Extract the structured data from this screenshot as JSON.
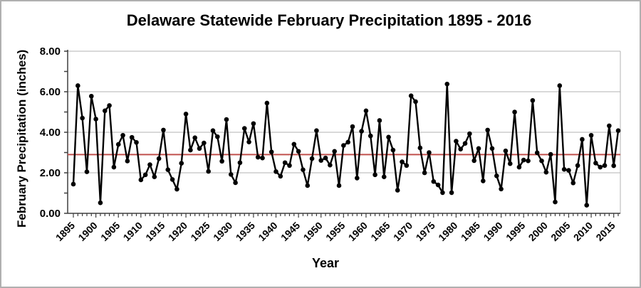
{
  "frame": {
    "title": "Delaware Statewide February Precipitation 1895 - 2016"
  },
  "chart_data": {
    "type": "line",
    "title": "Delaware Statewide February Precipitation 1895 - 2016",
    "xlabel": "Year",
    "ylabel": "February Precipitation (inches)",
    "ylim": [
      0,
      8
    ],
    "y_tick_labels": [
      "0.00",
      "2.00",
      "4.00",
      "6.00",
      "8.00"
    ],
    "y_tick_values": [
      0,
      2,
      4,
      6,
      8
    ],
    "y_minor_tick_step": 1,
    "x_start_year": 1895,
    "x_end_year": 2016,
    "x_tick_labels": [
      "1895",
      "1900",
      "1905",
      "1910",
      "1915",
      "1920",
      "1925",
      "1930",
      "1935",
      "1940",
      "1945",
      "1950",
      "1955",
      "1960",
      "1965",
      "1970",
      "1975",
      "1980",
      "1985",
      "1990",
      "1995",
      "2000",
      "2005",
      "2010",
      "2015"
    ],
    "grid": "horizontal",
    "legend": "none",
    "mean_line": {
      "value": 2.9,
      "color": "#c0504d"
    },
    "series": [
      {
        "name": "February precipitation (inches)",
        "color": "#000000",
        "values": [
          1.44,
          6.3,
          4.7,
          2.05,
          5.78,
          4.65,
          0.52,
          5.06,
          5.32,
          2.28,
          3.4,
          3.85,
          2.58,
          3.75,
          3.5,
          1.65,
          1.9,
          2.4,
          1.8,
          2.7,
          4.11,
          2.15,
          1.67,
          1.19,
          2.47,
          4.9,
          3.12,
          3.73,
          3.2,
          3.47,
          2.07,
          4.08,
          3.78,
          2.57,
          4.63,
          1.92,
          1.51,
          2.5,
          4.19,
          3.52,
          4.43,
          2.77,
          2.73,
          5.44,
          3.03,
          2.06,
          1.83,
          2.5,
          2.36,
          3.41,
          3.06,
          2.15,
          1.37,
          2.7,
          4.08,
          2.61,
          2.73,
          2.38,
          3.06,
          1.37,
          3.35,
          3.51,
          4.28,
          1.74,
          4.05,
          5.06,
          3.82,
          1.9,
          4.58,
          1.8,
          3.76,
          3.12,
          1.14,
          2.54,
          2.36,
          5.8,
          5.51,
          3.23,
          2.0,
          3.0,
          1.57,
          1.4,
          1.02,
          6.38,
          1.02,
          3.56,
          3.17,
          3.45,
          3.93,
          2.6,
          3.2,
          1.6,
          4.11,
          3.2,
          1.85,
          1.2,
          3.08,
          2.45,
          5.0,
          2.28,
          2.63,
          2.59,
          5.57,
          2.99,
          2.59,
          2.03,
          2.91,
          0.56,
          6.3,
          2.17,
          2.12,
          1.5,
          2.36,
          3.65,
          0.4,
          3.85,
          2.48,
          2.28,
          2.36,
          4.32,
          2.35,
          4.08
        ]
      }
    ],
    "colors": {
      "line": "#000000",
      "marker": "#000000",
      "gridline": "#b3b3b3",
      "axis": "#3f3f3f",
      "mean_line": "#c0504d",
      "background": "#ffffff",
      "outer_border": "#b0b0b0"
    }
  }
}
